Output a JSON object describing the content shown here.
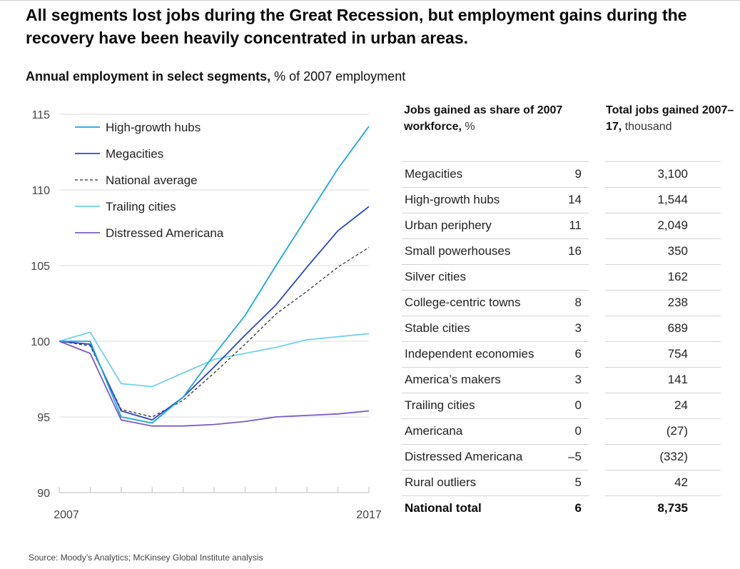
{
  "title": "All segments lost jobs during the Great Recession, but employment gains during the recovery have been heavily concentrated in urban areas.",
  "subtitle_bold": "Annual employment in select segments,",
  "subtitle_rest": " % of 2007 employment",
  "chart_data": {
    "type": "line",
    "title": "Annual employment in select segments",
    "ylabel": "% of 2007 employment",
    "ylim": [
      90,
      115
    ],
    "yticks": [
      90,
      95,
      100,
      105,
      110,
      115
    ],
    "x": [
      2007,
      2008,
      2009,
      2010,
      2011,
      2012,
      2013,
      2014,
      2015,
      2016,
      2017
    ],
    "x_tick_labels": [
      "2007",
      "2017"
    ],
    "grid": true,
    "legend": "top-left",
    "series": [
      {
        "name": "High-growth hubs",
        "color": "#1ca6e0",
        "dash": "solid",
        "values": [
          100,
          100,
          95.0,
          94.6,
          96.3,
          99.1,
          101.7,
          105.0,
          108.2,
          111.4,
          114.2
        ]
      },
      {
        "name": "Megacities",
        "color": "#2a46cc",
        "dash": "solid",
        "values": [
          100,
          99.8,
          95.4,
          94.8,
          96.3,
          98.3,
          100.4,
          102.4,
          104.9,
          107.3,
          108.9
        ]
      },
      {
        "name": "National average",
        "color": "#333333",
        "dash": "dashed",
        "values": [
          100,
          99.7,
          95.5,
          95.0,
          96.1,
          97.9,
          99.8,
          101.8,
          103.3,
          104.9,
          106.2
        ]
      },
      {
        "name": "Trailing cities",
        "color": "#6fd0ee",
        "dash": "solid",
        "values": [
          100,
          100.6,
          97.2,
          97.0,
          97.9,
          98.8,
          99.2,
          99.6,
          100.1,
          100.3,
          100.5
        ]
      },
      {
        "name": "Distressed Americana",
        "color": "#7a5bc9",
        "dash": "solid",
        "values": [
          100,
          99.2,
          94.8,
          94.4,
          94.4,
          94.5,
          94.7,
          95.0,
          95.1,
          95.2,
          95.4
        ]
      }
    ]
  },
  "table": {
    "col1_header_bold": "Jobs gained as share of 2007 workforce,",
    "col1_header_unit": " %",
    "col2_header_bold": "Total jobs gained 2007–17,",
    "col2_header_unit": " thousand",
    "rows": [
      {
        "name": "Megacities",
        "share": "9",
        "total": "3,100"
      },
      {
        "name": "High-growth hubs",
        "share": "14",
        "total": "1,544"
      },
      {
        "name": "Urban periphery",
        "share": "11",
        "total": "2,049"
      },
      {
        "name": "Small powerhouses",
        "share": "16",
        "total": "350"
      },
      {
        "name": "Silver cities",
        "share": "",
        "total": "162"
      },
      {
        "name": "College-centric towns",
        "share": "8",
        "total": "238"
      },
      {
        "name": "Stable cities",
        "share": "3",
        "total": "689"
      },
      {
        "name": "Independent economies",
        "share": "6",
        "total": "754"
      },
      {
        "name": "America’s makers",
        "share": "3",
        "total": "141"
      },
      {
        "name": "Trailing cities",
        "share": "0",
        "total": "24"
      },
      {
        "name": "Americana",
        "share": "0",
        "total": "(27)"
      },
      {
        "name": "Distressed Americana",
        "share": "–5",
        "total": "(332)"
      },
      {
        "name": "Rural outliers",
        "share": "5",
        "total": "42"
      }
    ],
    "total_row": {
      "name": "National total",
      "share": "6",
      "total": "8,735"
    }
  },
  "source": "Source: Moody’s Analytics; McKinsey Global Institute analysis"
}
